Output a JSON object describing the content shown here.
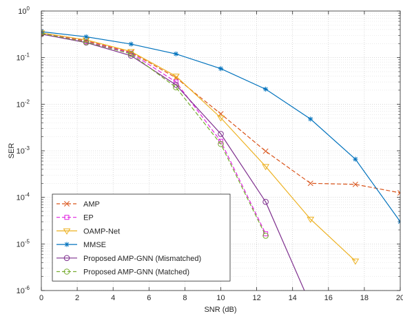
{
  "chart_data": {
    "type": "line",
    "xlabel": "SNR (dB)",
    "ylabel": "SER",
    "xlim": [
      0,
      20
    ],
    "ylim": [
      1e-06,
      1
    ],
    "yscale": "log",
    "grid": "major and minor, dotted",
    "legend_position": "bottom-left",
    "x_ticks": [
      "0",
      "2",
      "4",
      "6",
      "8",
      "10",
      "12",
      "14",
      "16",
      "18",
      "20"
    ],
    "y_ticks": [
      {
        "base": "10",
        "exp": "-6"
      },
      {
        "base": "10",
        "exp": "-5"
      },
      {
        "base": "10",
        "exp": "-4"
      },
      {
        "base": "10",
        "exp": "-3"
      },
      {
        "base": "10",
        "exp": "-2"
      },
      {
        "base": "10",
        "exp": "-1"
      },
      {
        "base": "10",
        "exp": "0"
      }
    ],
    "series": [
      {
        "name": "AMP",
        "color": "#D95319",
        "dash": "dashed",
        "marker": "x",
        "x": [
          0,
          2.5,
          5,
          7.5,
          10,
          12.5,
          15,
          17.5,
          20
        ],
        "y": [
          0.33,
          0.23,
          0.13,
          0.037,
          0.0062,
          0.00098,
          0.0002,
          0.00019,
          0.000125
        ]
      },
      {
        "name": "EP",
        "color": "#E020E0",
        "dash": "dashed",
        "marker": "square",
        "x": [
          0,
          2.5,
          5,
          7.5,
          10,
          12.5
        ],
        "y": [
          0.33,
          0.22,
          0.125,
          0.03,
          0.0016,
          1.65e-05
        ]
      },
      {
        "name": "OAMP-Net",
        "color": "#EDB120",
        "dash": "solid",
        "marker": "triangle-down",
        "x": [
          0,
          2.5,
          5,
          7.5,
          10,
          12.5,
          15,
          17.5
        ],
        "y": [
          0.34,
          0.24,
          0.135,
          0.04,
          0.0051,
          0.00046,
          3.4e-05,
          4.3e-06
        ]
      },
      {
        "name": "MMSE",
        "color": "#0072BD",
        "dash": "solid",
        "marker": "asterisk",
        "x": [
          0,
          2.5,
          5,
          7.5,
          10,
          12.5,
          15,
          17.5,
          20
        ],
        "y": [
          0.36,
          0.28,
          0.195,
          0.12,
          0.058,
          0.021,
          0.0048,
          0.00066,
          3e-05
        ]
      },
      {
        "name": "Proposed AMP-GNN (Mismatched)",
        "color": "#7E2F8E",
        "dash": "solid",
        "marker": "circle",
        "x": [
          0,
          2.5,
          5,
          7.5,
          10,
          12.5,
          15
        ],
        "y": [
          0.32,
          0.21,
          0.11,
          0.026,
          0.0023,
          8e-05,
          5e-07
        ]
      },
      {
        "name": "Proposed AMP-GNN (Matched)",
        "color": "#77AC30",
        "dash": "dashed",
        "marker": "circle",
        "x": [
          0,
          2.5,
          5,
          7.5,
          10,
          12.5
        ],
        "y": [
          0.33,
          0.215,
          0.12,
          0.023,
          0.0014,
          1.5e-05
        ]
      }
    ]
  }
}
